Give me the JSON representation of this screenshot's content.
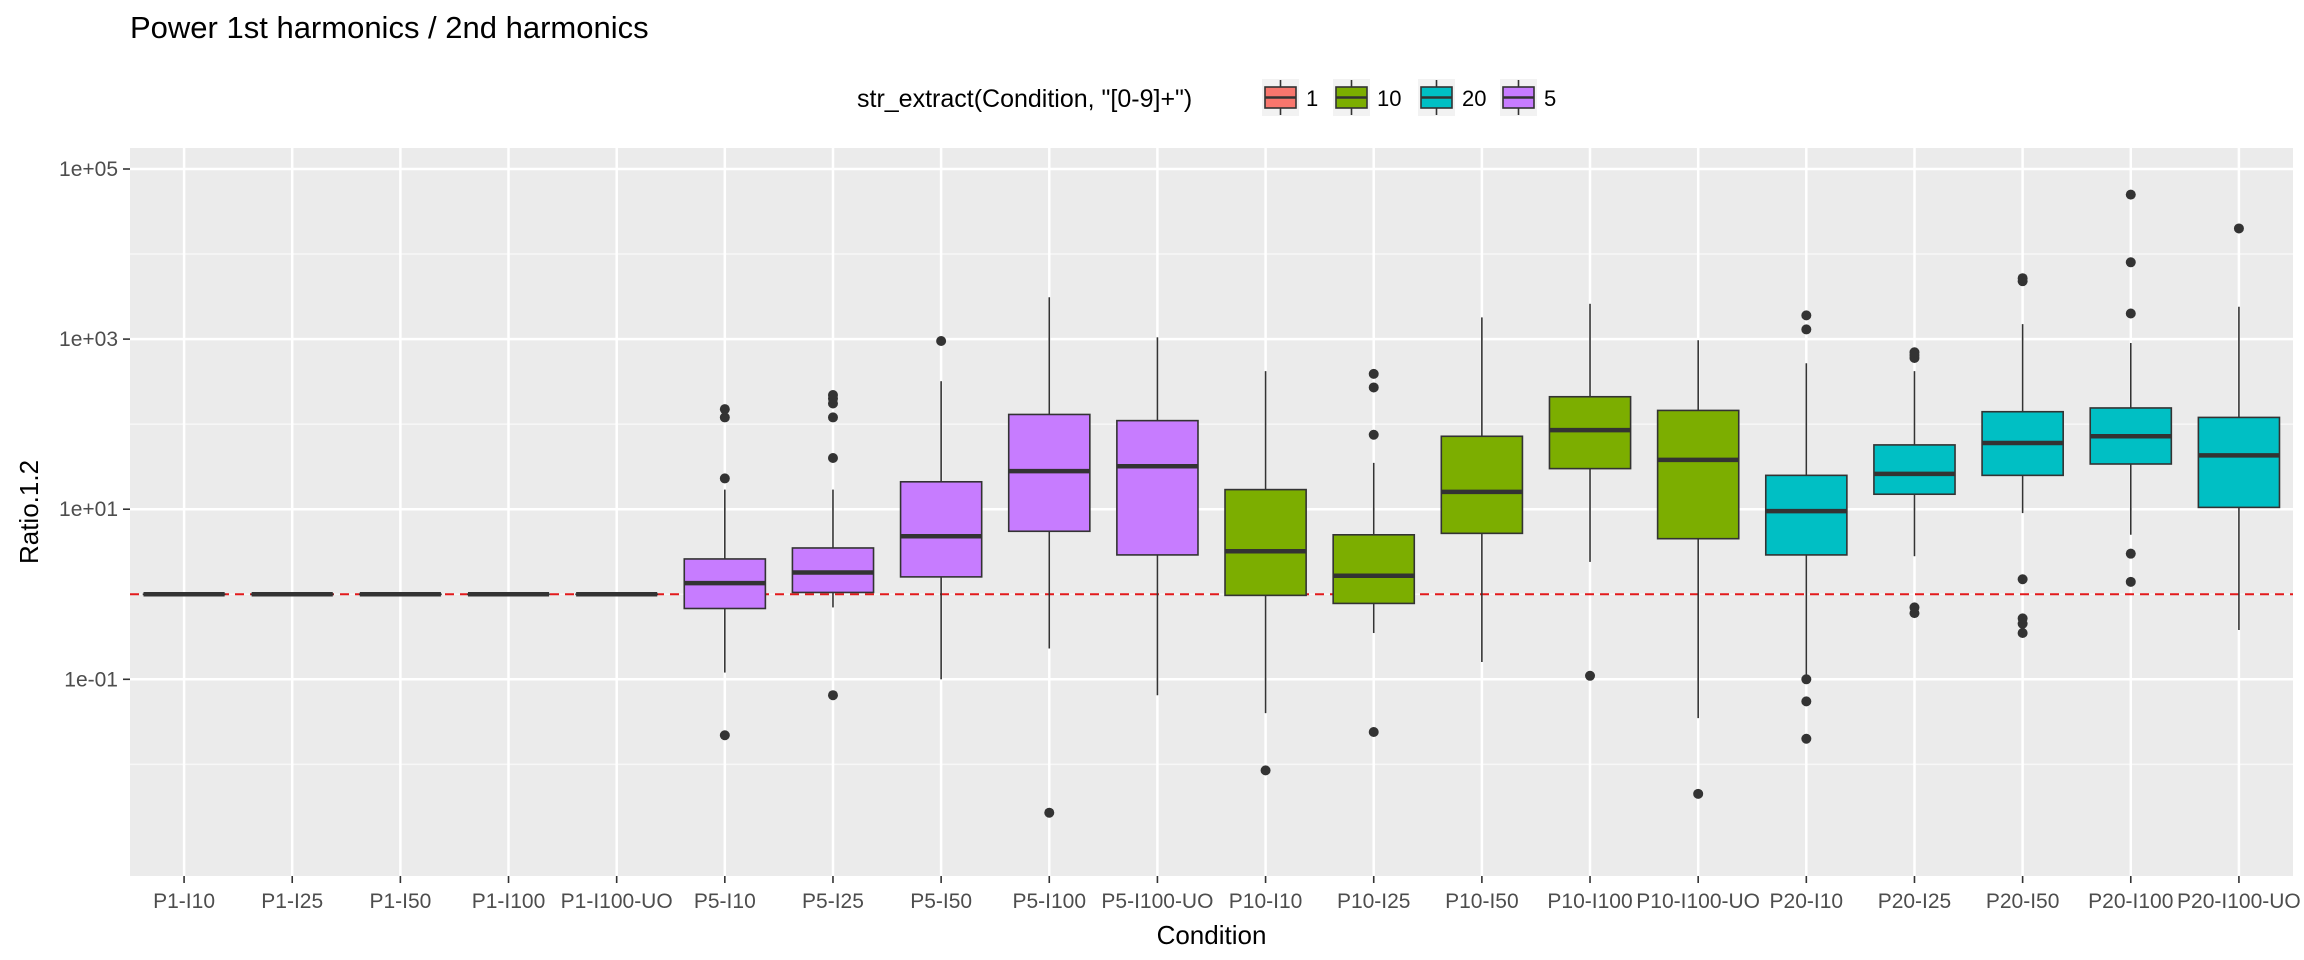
{
  "chart_data": {
    "type": "box",
    "title": "Power 1st harmonics / 2nd harmonics",
    "xlabel": "Condition",
    "ylabel": "Ratio.1.2",
    "y_scale": "log10",
    "ylim": [
      0.0005,
      100000
    ],
    "y_ticks": [
      {
        "value": 0.1,
        "label": "1e-01"
      },
      {
        "value": 10,
        "label": "1e+01"
      },
      {
        "value": 1000,
        "label": "1e+03"
      },
      {
        "value": 100000,
        "label": "1e+05"
      }
    ],
    "reference_line": {
      "value": 1,
      "style": "dashed",
      "color": "#e31a1c"
    },
    "grid": true,
    "legend": {
      "title": "str_extract(Condition, \"[0-9]+\")",
      "position": "top",
      "items": [
        {
          "label": "1",
          "color": "#F8766D"
        },
        {
          "label": "10",
          "color": "#7CAE00"
        },
        {
          "label": "20",
          "color": "#00BFC4"
        },
        {
          "label": "5",
          "color": "#C77CFF"
        }
      ]
    },
    "categories": [
      "P1-I10",
      "P1-I25",
      "P1-I50",
      "P1-I100",
      "P1-I100-UO",
      "P5-I10",
      "P5-I25",
      "P5-I50",
      "P5-I100",
      "P5-I100-UO",
      "P10-I10",
      "P10-I25",
      "P10-I50",
      "P10-I100",
      "P10-I100-UO",
      "P20-I10",
      "P20-I25",
      "P20-I50",
      "P20-I100",
      "P20-I100-UO"
    ],
    "boxes": [
      {
        "group": "1",
        "min": 1,
        "q1": 1,
        "median": 1,
        "q3": 1,
        "max": 1,
        "outliers": []
      },
      {
        "group": "1",
        "min": 1,
        "q1": 1,
        "median": 1,
        "q3": 1,
        "max": 1,
        "outliers": []
      },
      {
        "group": "1",
        "min": 1,
        "q1": 1,
        "median": 1,
        "q3": 1,
        "max": 1,
        "outliers": []
      },
      {
        "group": "1",
        "min": 1,
        "q1": 1,
        "median": 1,
        "q3": 1,
        "max": 1,
        "outliers": []
      },
      {
        "group": "1",
        "min": 1,
        "q1": 1,
        "median": 1,
        "q3": 1,
        "max": 1,
        "outliers": []
      },
      {
        "group": "5",
        "min": 0.12,
        "q1": 0.68,
        "median": 1.35,
        "q3": 2.6,
        "max": 17,
        "outliers": [
          0.022,
          23,
          120,
          150
        ]
      },
      {
        "group": "5",
        "min": 0.7,
        "q1": 1.05,
        "median": 1.8,
        "q3": 3.5,
        "max": 17,
        "outliers": [
          0.065,
          40,
          120,
          175,
          200,
          220
        ]
      },
      {
        "group": "5",
        "min": 0.1,
        "q1": 1.6,
        "median": 4.8,
        "q3": 21,
        "max": 320,
        "outliers": [
          950
        ]
      },
      {
        "group": "5",
        "min": 0.23,
        "q1": 5.5,
        "median": 28,
        "q3": 130,
        "max": 3100,
        "outliers": [
          0.0027
        ]
      },
      {
        "group": "5",
        "min": 0.065,
        "q1": 2.9,
        "median": 32,
        "q3": 110,
        "max": 1050,
        "outliers": []
      },
      {
        "group": "10",
        "min": 0.04,
        "q1": 0.97,
        "median": 3.2,
        "q3": 17,
        "max": 420,
        "outliers": [
          0.0085
        ]
      },
      {
        "group": "10",
        "min": 0.35,
        "q1": 0.78,
        "median": 1.65,
        "q3": 5,
        "max": 35,
        "outliers": [
          0.024,
          75,
          270,
          390
        ]
      },
      {
        "group": "10",
        "min": 0.16,
        "q1": 5.2,
        "median": 16,
        "q3": 72,
        "max": 1800,
        "outliers": []
      },
      {
        "group": "10",
        "min": 2.4,
        "q1": 30,
        "median": 85,
        "q3": 210,
        "max": 2600,
        "outliers": [
          0.11
        ]
      },
      {
        "group": "10",
        "min": 0.035,
        "q1": 4.5,
        "median": 38,
        "q3": 145,
        "max": 970,
        "outliers": [
          0.0045
        ]
      },
      {
        "group": "20",
        "min": 0.11,
        "q1": 2.9,
        "median": 9.5,
        "q3": 25,
        "max": 520,
        "outliers": [
          0.02,
          0.055,
          0.1,
          1300,
          1900
        ]
      },
      {
        "group": "20",
        "min": 2.8,
        "q1": 15,
        "median": 26,
        "q3": 57,
        "max": 420,
        "outliers": [
          0.6,
          0.7,
          600,
          650,
          700
        ]
      },
      {
        "group": "20",
        "min": 9,
        "q1": 25,
        "median": 60,
        "q3": 140,
        "max": 1500,
        "outliers": [
          0.35,
          0.45,
          0.52,
          1.5,
          4800,
          5200
        ]
      },
      {
        "group": "20",
        "min": 5,
        "q1": 34,
        "median": 72,
        "q3": 155,
        "max": 900,
        "outliers": [
          1.4,
          3,
          2000,
          8000,
          50000
        ]
      },
      {
        "group": "20",
        "min": 0.38,
        "q1": 10.5,
        "median": 43,
        "q3": 120,
        "max": 2400,
        "outliers": [
          20000
        ]
      }
    ]
  }
}
